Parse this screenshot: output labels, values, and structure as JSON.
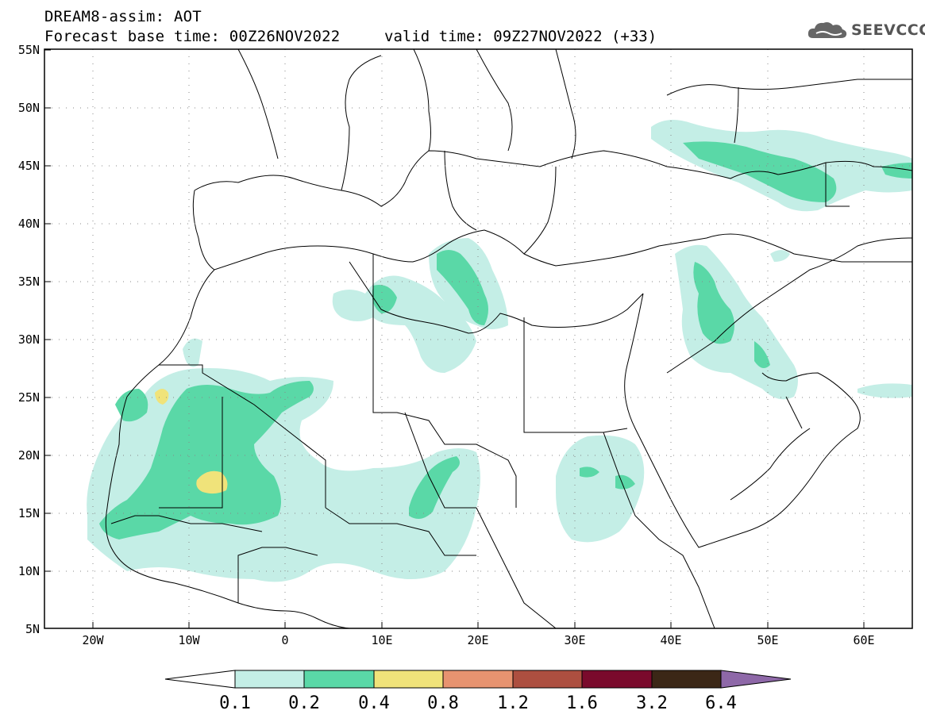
{
  "header": {
    "title": "DREAM8-assim: AOT",
    "base_time": "Forecast base time: 00Z26NOV2022",
    "valid_time": "valid time: 09Z27NOV2022 (+33)",
    "logo_text": "SEEVCCC"
  },
  "map": {
    "lat_labels": [
      "55N",
      "50N",
      "45N",
      "40N",
      "35N",
      "30N",
      "25N",
      "20N",
      "15N",
      "10N",
      "5N"
    ],
    "lon_labels": [
      "20W",
      "10W",
      "0",
      "10E",
      "20E",
      "30E",
      "40E",
      "50E",
      "60E"
    ],
    "lat_range": [
      5,
      55
    ],
    "lon_range": [
      -25,
      65
    ],
    "grid": "dotted"
  },
  "colorbar": {
    "labels": [
      "0.1",
      "0.2",
      "0.4",
      "0.8",
      "1.2",
      "1.6",
      "3.2",
      "6.4"
    ],
    "colors": [
      "#ffffff",
      "#c4eee6",
      "#5ad8a7",
      "#f0e37a",
      "#e79370",
      "#ad4f40",
      "#7a0a2c",
      "#3b2716",
      "#8e68a8"
    ]
  }
}
